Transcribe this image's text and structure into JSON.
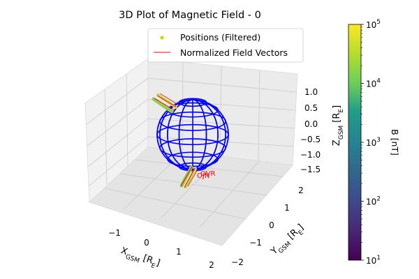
{
  "chart_data": {
    "type": "scatter",
    "title": "3D Plot of Magnetic Field - 0",
    "xlabel": "X_GSM [R_E]",
    "ylabel": "Y_GSM [R_E]",
    "zlabel": "Z_GSM [R_E]",
    "axes": {
      "x": {
        "range": [
          -2,
          2.2
        ],
        "ticks": [
          -1,
          0,
          1,
          2
        ],
        "tick_labels": [
          "−1",
          "0",
          "1",
          "2"
        ]
      },
      "y": {
        "range": [
          -2.2,
          2.2
        ],
        "ticks": [
          -2,
          -1,
          0,
          1,
          2
        ],
        "tick_labels": [
          "−2",
          "−1",
          "0",
          "1",
          "2"
        ]
      },
      "z": {
        "range": [
          -1.7,
          1.3
        ],
        "ticks": [
          -1.5,
          -1.0,
          -0.5,
          0.0,
          0.5,
          1.0
        ],
        "tick_labels": [
          "−1.5",
          "−1.0",
          "−0.5",
          "0.0",
          "0.5",
          "1.0"
        ]
      }
    },
    "grid": true,
    "legend": {
      "placement": "top-center",
      "entries": [
        {
          "label": "Positions (Filtered)",
          "color": "#d4d400",
          "marker": "point"
        },
        {
          "label": "Normalized Field Vectors",
          "color": "#ff0000",
          "marker": "line"
        }
      ]
    },
    "earth": {
      "radius": 1,
      "color": "#0000ff"
    },
    "annotations": [
      "OVR",
      "OJN"
    ],
    "annotation_color": "#ff0000",
    "colorbar": {
      "label": "B [nT]",
      "scale": "log",
      "range": [
        10,
        100000
      ],
      "colormap": "viridis",
      "ticks": [
        {
          "base": "10",
          "exp": "1"
        },
        {
          "base": "10",
          "exp": "2"
        },
        {
          "base": "10",
          "exp": "3"
        },
        {
          "base": "10",
          "exp": "4"
        },
        {
          "base": "10",
          "exp": "5"
        }
      ]
    }
  }
}
